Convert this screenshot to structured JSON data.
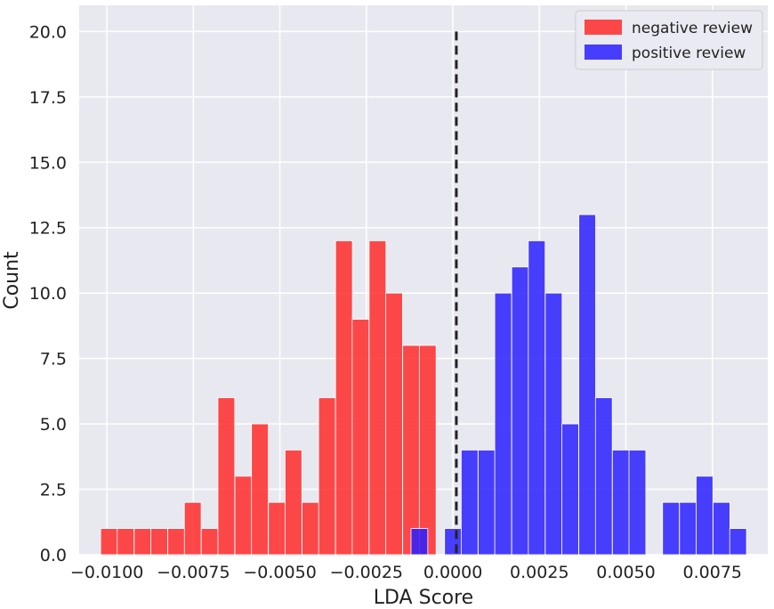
{
  "chart_data": {
    "type": "bar",
    "title": "",
    "xlabel": "LDA Score",
    "ylabel": "Count",
    "xlim": [
      -0.0108,
      0.0091
    ],
    "ylim": [
      0,
      21
    ],
    "grid": true,
    "legend_position": "top-right",
    "xticks": [
      -0.01,
      -0.0075,
      -0.005,
      -0.0025,
      0.0,
      0.0025,
      0.005,
      0.0075
    ],
    "xtick_labels": [
      "−0.0100",
      "−0.0075",
      "−0.0050",
      "−0.0025",
      "0.0000",
      "0.0025",
      "0.0050",
      "0.0075"
    ],
    "yticks": [
      0,
      2.5,
      5,
      7.5,
      10,
      12.5,
      15,
      17.5,
      20
    ],
    "ytick_labels": [
      "0.0",
      "2.5",
      "5.0",
      "7.5",
      "10.0",
      "12.5",
      "15.0",
      "17.5",
      "20.0"
    ],
    "bin_width": 0.000485,
    "threshold_line": {
      "x": 0.0001,
      "y_top": 20,
      "style": "dashed",
      "color": "#222222"
    },
    "series": [
      {
        "name": "negative review",
        "color": "#ff2a2a",
        "bin_starts": [
          -0.01018,
          -0.0097,
          -0.00921,
          -0.00873,
          -0.00824,
          -0.00776,
          -0.00727,
          -0.00679,
          -0.0063,
          -0.00582,
          -0.00533,
          -0.00485,
          -0.00436,
          -0.00388,
          -0.00339,
          -0.00291,
          -0.00242,
          -0.00194,
          -0.00145,
          -0.00097,
          -0.00048
        ],
        "counts": [
          1,
          1,
          1,
          1,
          1,
          2,
          1,
          6,
          3,
          5,
          2,
          4,
          2,
          6,
          12,
          9,
          12,
          10,
          8,
          8,
          0
        ]
      },
      {
        "name": "positive review",
        "color": "#2a1fff",
        "bin_starts": [
          -0.00121,
          -0.00024,
          0.00024,
          0.00073,
          0.00121,
          0.0017,
          0.00218,
          0.00267,
          0.00315,
          0.00364,
          0.00412,
          0.00461,
          0.00509,
          0.00558,
          0.00606,
          0.00655,
          0.00703,
          0.00752
        ],
        "counts": [
          1,
          1,
          4,
          4,
          10,
          11,
          12,
          10,
          5,
          13,
          6,
          4,
          4,
          0,
          2,
          2,
          3,
          2
        ]
      },
      {
        "name": "",
        "color": "#2a1fff",
        "bin_starts": [
          0.008
        ],
        "counts": [
          1
        ]
      }
    ]
  }
}
